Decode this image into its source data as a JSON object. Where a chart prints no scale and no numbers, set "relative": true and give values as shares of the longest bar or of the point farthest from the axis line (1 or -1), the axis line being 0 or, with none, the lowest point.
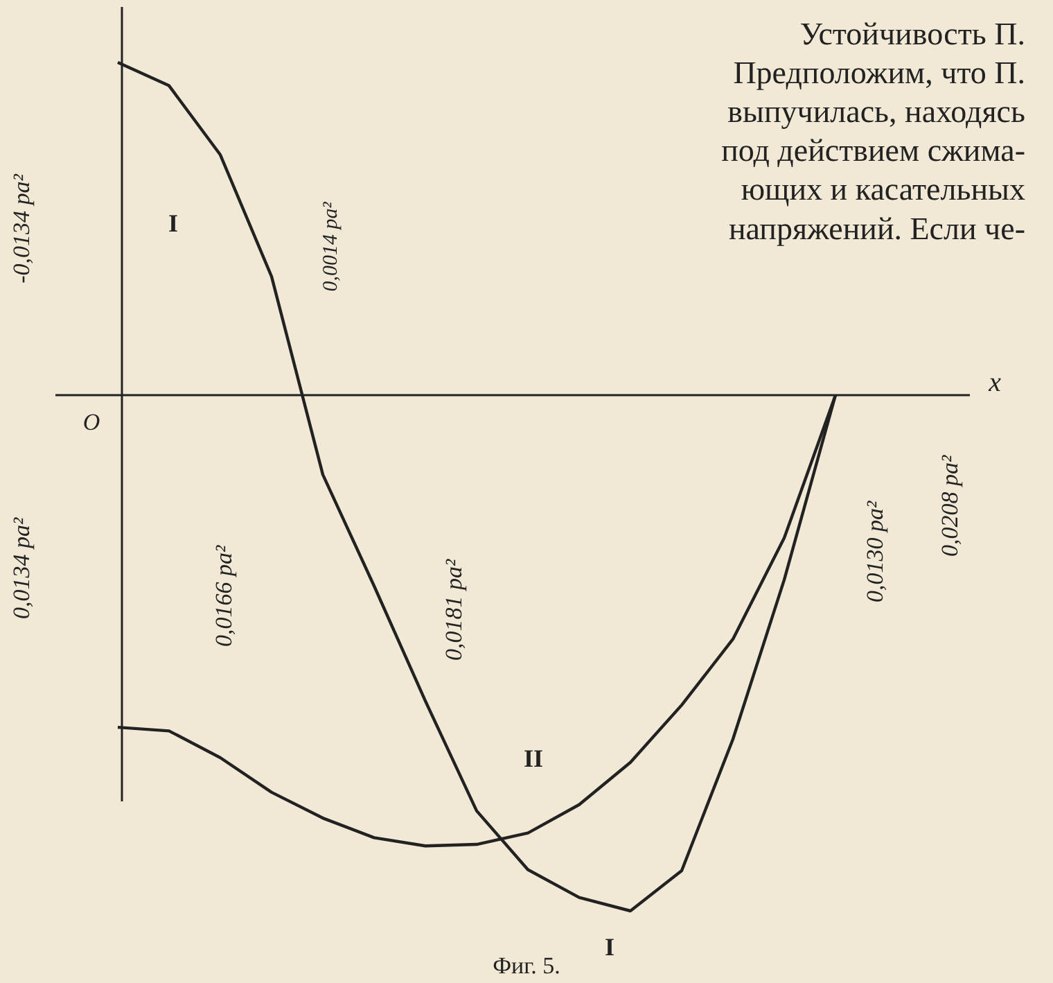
{
  "chart_data": {
    "type": "line",
    "relative": true,
    "xlabel": "x",
    "categories": [
      null,
      null,
      null,
      null,
      null,
      null,
      null,
      null,
      null,
      null,
      null,
      null,
      null,
      null,
      null
    ],
    "series": [
      {
        "name": "I",
        "color": "#222222",
        "values": [
          0.645,
          0.6,
          0.466,
          0.23,
          -0.154,
          -0.37,
          -0.593,
          -0.806,
          -0.92,
          -0.974,
          -1,
          -0.922,
          -0.667,
          -0.358,
          0
        ]
      },
      {
        "name": "II",
        "color": "#222222",
        "values": [
          -0.644,
          -0.651,
          -0.703,
          -0.77,
          -0.82,
          -0.858,
          -0.874,
          -0.871,
          -0.849,
          -0.794,
          -0.712,
          -0.601,
          -0.473,
          -0.277,
          0
        ]
      }
    ],
    "annotations": [
      "Устойчивость П.\nПредположим, что П.\nвыпучилась, находясь\nпод действием сжима-\nющих и касательных\nнапряжений. Если че-",
      "Фиг. 5.",
      "O",
      "-0,0134 pa²",
      "0,0134 pa²",
      "0,0014 pa²",
      "0,0166 pa²",
      "0,0181 pa²",
      "0,0130 pa²",
      "0,0208 pa²"
    ]
  }
}
